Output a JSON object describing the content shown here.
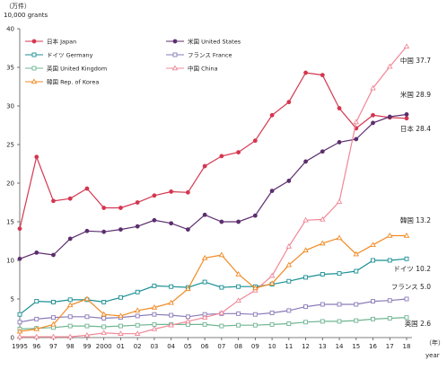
{
  "chart_data": {
    "type": "line",
    "ylabel_jp": "（万件）",
    "ylabel_en": "10,000 grants",
    "xlabel_jp": "（年）",
    "xlabel_en": "year",
    "ylim": [
      0,
      40
    ],
    "yticks": [
      0,
      5,
      10,
      15,
      20,
      25,
      30,
      35,
      40
    ],
    "categories": [
      "1995",
      "96",
      "97",
      "98",
      "99",
      "2000",
      "01",
      "02",
      "03",
      "04",
      "05",
      "06",
      "07",
      "08",
      "09",
      "10",
      "11",
      "12",
      "13",
      "14",
      "15",
      "16",
      "17",
      "18"
    ],
    "legend_position": "top-left",
    "grid": false,
    "series": [
      {
        "name": "日本 Japan",
        "end_label": "日本 28.4",
        "color": "#d4364f",
        "marker": "circle",
        "values": [
          14.1,
          23.4,
          17.7,
          18.0,
          19.3,
          16.8,
          16.8,
          17.5,
          18.4,
          18.9,
          18.8,
          22.2,
          23.5,
          24.0,
          25.5,
          28.8,
          30.5,
          34.3,
          34.0,
          29.7,
          27.1,
          28.8,
          28.5,
          28.4
        ]
      },
      {
        "name": "米国 United States",
        "end_label": "米国 28.9",
        "color": "#5c2e6e",
        "marker": "circle",
        "values": [
          10.2,
          11.0,
          10.7,
          12.8,
          13.8,
          13.7,
          14.0,
          14.4,
          15.2,
          14.8,
          14.0,
          15.9,
          15.0,
          15.0,
          15.8,
          19.0,
          20.3,
          22.8,
          24.1,
          25.3,
          25.7,
          27.8,
          28.6,
          28.9
        ]
      },
      {
        "name": "ドイツ Germany",
        "end_label": "ドイツ 10.2",
        "color": "#1a8f93",
        "marker": "square",
        "values": [
          3.0,
          4.7,
          4.6,
          4.9,
          4.9,
          4.6,
          5.2,
          5.9,
          6.7,
          6.6,
          6.5,
          7.2,
          6.5,
          6.6,
          6.6,
          6.9,
          7.3,
          7.8,
          8.2,
          8.3,
          8.6,
          10.0,
          10.0,
          10.2
        ]
      },
      {
        "name": "フランス France",
        "end_label": "フランス 5.0",
        "color": "#8a7bb8",
        "marker": "square",
        "values": [
          2.0,
          2.4,
          2.6,
          2.7,
          2.7,
          2.5,
          2.6,
          2.8,
          3.0,
          2.9,
          2.7,
          3.0,
          3.1,
          3.1,
          3.0,
          3.2,
          3.5,
          4.0,
          4.3,
          4.3,
          4.3,
          4.7,
          4.8,
          5.0
        ]
      },
      {
        "name": "英国 United Kingdom",
        "end_label": "英国 2.6",
        "color": "#6fb592",
        "marker": "square",
        "values": [
          1.1,
          1.2,
          1.3,
          1.5,
          1.5,
          1.4,
          1.5,
          1.6,
          1.7,
          1.7,
          1.7,
          1.7,
          1.5,
          1.6,
          1.6,
          1.7,
          1.8,
          2.0,
          2.1,
          2.1,
          2.2,
          2.4,
          2.5,
          2.6
        ]
      },
      {
        "name": "中国 China",
        "end_label": "中国 37.7",
        "color": "#f08796",
        "marker": "triangle",
        "values": [
          0.1,
          0.1,
          0.1,
          0.1,
          0.3,
          0.6,
          0.5,
          0.5,
          1.1,
          1.6,
          2.1,
          2.6,
          3.2,
          4.8,
          6.1,
          8.0,
          11.8,
          15.2,
          15.3,
          17.6,
          27.9,
          32.3,
          35.1,
          37.7
        ]
      },
      {
        "name": "韓国 Rep. of Korea",
        "end_label": "韓国 13.2",
        "color": "#f08a24",
        "marker": "triangle",
        "values": [
          0.8,
          1.1,
          1.7,
          4.2,
          5.0,
          3.0,
          2.8,
          3.5,
          3.9,
          4.5,
          6.3,
          10.3,
          10.7,
          8.2,
          6.4,
          7.0,
          9.4,
          11.3,
          12.2,
          12.9,
          10.8,
          12.0,
          13.2,
          13.2
        ]
      }
    ]
  }
}
